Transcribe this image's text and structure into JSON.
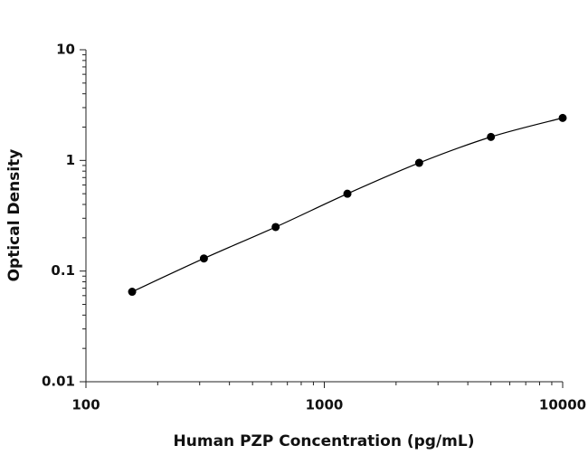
{
  "chart_data": {
    "type": "scatter",
    "x_label": "Human PZP Concentration (pg/mL)",
    "y_label": "Optical Density",
    "x": [
      156.25,
      312.5,
      625,
      1250,
      2500,
      5000,
      10000
    ],
    "values": [
      0.065,
      0.13,
      0.25,
      0.5,
      0.95,
      1.63,
      2.42
    ],
    "color": "#000000",
    "fit_line": true,
    "x_log": true,
    "y_log": true,
    "xlim": [
      100,
      10000
    ],
    "xticks": [
      100,
      1000,
      10000
    ],
    "ylim": [
      0.01,
      10
    ],
    "yticks": [
      0.01,
      0.1,
      1,
      10
    ]
  }
}
